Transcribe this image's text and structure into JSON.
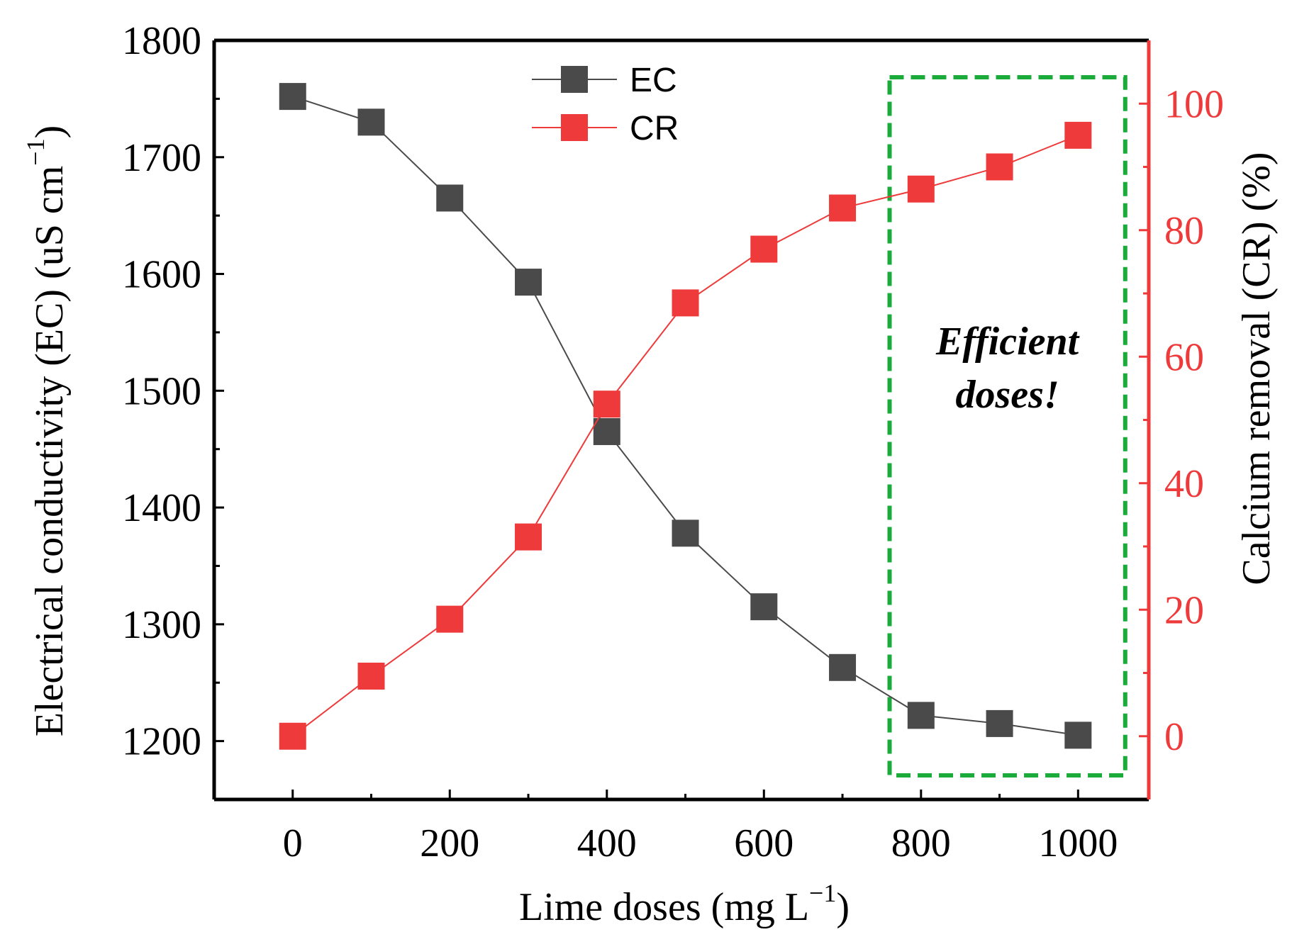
{
  "chart_data": {
    "type": "line",
    "xlabel_main": "Lime doses (mg L",
    "xlabel_sup": "−1",
    "xlabel_tail": ")",
    "ylabel_left_main": "Electrical conductivity (EC) (uS cm",
    "ylabel_left_sup": "−1",
    "ylabel_left_tail": ")",
    "ylabel_right": "Calcium removal (CR) (%)",
    "x": [
      0,
      100,
      200,
      300,
      400,
      500,
      600,
      700,
      800,
      900,
      1000
    ],
    "xlim": [
      -100,
      1090
    ],
    "xticks": [
      0,
      200,
      400,
      600,
      800,
      1000
    ],
    "ylim_left": [
      1150,
      1800
    ],
    "yticks_left": [
      1200,
      1300,
      1400,
      1500,
      1600,
      1700,
      1800
    ],
    "ylim_right": [
      -10,
      110
    ],
    "yticks_right": [
      0,
      20,
      40,
      60,
      80,
      100
    ],
    "series": [
      {
        "name": "EC",
        "axis": "left",
        "color": "#4a4a4a",
        "values": [
          1752,
          1730,
          1665,
          1593,
          1465,
          1378,
          1315,
          1263,
          1222,
          1215,
          1205
        ]
      },
      {
        "name": "CR",
        "axis": "right",
        "color": "#ee3a3a",
        "values": [
          0,
          9.5,
          18.5,
          31.5,
          52.5,
          68.5,
          77,
          83.5,
          86.5,
          90,
          95
        ]
      }
    ],
    "annotation": {
      "line1": "Efficient",
      "line2": "doses!",
      "x_range": [
        760,
        1060
      ],
      "border_color": "#1aab3a"
    },
    "legend_position": "top-center",
    "right_axis_color": "#ee3a3a",
    "grid": false
  }
}
